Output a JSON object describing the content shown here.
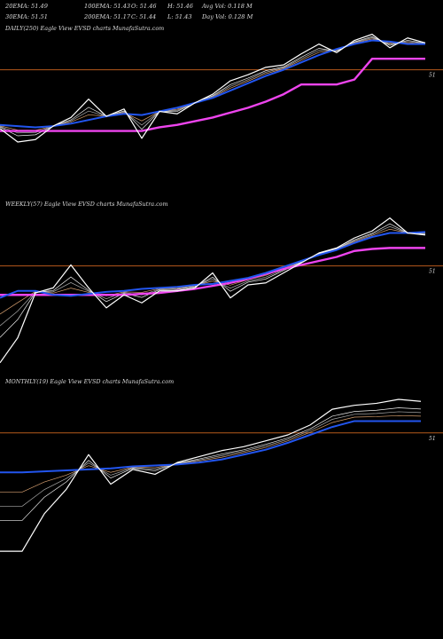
{
  "header": {
    "ema20": "20EMA: 51.49",
    "ema100": "100EMA: 51.43",
    "open": "O: 51.46",
    "high": "H: 51.46",
    "avg_vol": "Avg Vol: 0.118  M",
    "ema30": "30EMA: 51.51",
    "ema200": "200EMA: 51.17",
    "close": "C: 51.44",
    "low": "L: 51.43",
    "day_vol": "Day Vol: 0.128  M"
  },
  "colors": {
    "background": "#000000",
    "price": "#ffffff",
    "ema_short": "#2255ee",
    "ema_long": "#ee44ee",
    "ref_line": "#b65a1c",
    "ma_thin": [
      "#d8a070",
      "#aaaaaa",
      "#eeeeee"
    ]
  },
  "chart_data": [
    {
      "type": "line",
      "panel_label": "DAILY(250) Eagle   View  EVSD charts MunafaSutra.com",
      "reference_label": "51",
      "ylim": [
        50.56,
        51.72
      ],
      "reference": 51.44,
      "x": [
        0,
        20,
        40,
        60,
        80,
        100,
        120,
        140,
        160,
        180,
        200,
        220,
        240,
        260,
        280,
        300,
        320,
        340,
        360,
        380,
        400,
        420,
        440,
        460,
        480
      ],
      "series": [
        {
          "role": "price",
          "values": [
            50.96,
            50.85,
            50.87,
            50.98,
            51.05,
            51.2,
            51.06,
            51.12,
            50.88,
            51.1,
            51.08,
            51.17,
            51.24,
            51.35,
            51.4,
            51.46,
            51.48,
            51.57,
            51.65,
            51.58,
            51.68,
            51.73,
            51.62,
            51.7,
            51.66
          ]
        },
        {
          "role": "ema-blue",
          "values": [
            50.99,
            50.98,
            50.97,
            50.98,
            51.0,
            51.03,
            51.06,
            51.08,
            51.07,
            51.1,
            51.13,
            51.17,
            51.21,
            51.27,
            51.33,
            51.39,
            51.44,
            51.5,
            51.56,
            51.61,
            51.65,
            51.68,
            51.67,
            51.65,
            51.65
          ]
        },
        {
          "role": "ema-magenta",
          "values": [
            50.94,
            50.94,
            50.94,
            50.94,
            50.94,
            50.94,
            50.94,
            50.94,
            50.94,
            50.97,
            50.99,
            51.02,
            51.05,
            51.09,
            51.13,
            51.18,
            51.24,
            51.32,
            51.32,
            51.32,
            51.36,
            51.53,
            51.53,
            51.53,
            51.53
          ]
        }
      ]
    },
    {
      "type": "line",
      "panel_label": "WEEKLY(57) Eagle   View  EVSD charts MunafaSutra.com",
      "reference_label": "51",
      "ylim": [
        50.2,
        51.8
      ],
      "reference": 51.27,
      "x": [
        0,
        20,
        40,
        60,
        80,
        100,
        120,
        140,
        160,
        180,
        200,
        220,
        240,
        260,
        280,
        300,
        320,
        340,
        360,
        380,
        400,
        420,
        440,
        460,
        480
      ],
      "series": [
        {
          "role": "price",
          "values": [
            50.3,
            50.55,
            51.0,
            51.05,
            51.28,
            51.05,
            50.85,
            50.98,
            50.9,
            51.02,
            51.02,
            51.05,
            51.2,
            50.95,
            51.08,
            51.1,
            51.2,
            51.3,
            51.4,
            51.45,
            51.55,
            51.62,
            51.75,
            51.6,
            51.58
          ]
        },
        {
          "role": "ema-blue",
          "values": [
            50.95,
            51.02,
            51.02,
            50.98,
            50.97,
            50.99,
            51.01,
            51.02,
            51.04,
            51.05,
            51.06,
            51.08,
            51.09,
            51.12,
            51.15,
            51.2,
            51.26,
            51.32,
            51.38,
            51.43,
            51.5,
            51.56,
            51.6,
            51.6,
            51.61
          ]
        },
        {
          "role": "ema-magenta",
          "values": [
            50.98,
            50.98,
            50.98,
            50.98,
            50.98,
            50.98,
            50.98,
            50.98,
            50.99,
            51.0,
            51.02,
            51.04,
            51.07,
            51.1,
            51.14,
            51.19,
            51.24,
            51.28,
            51.32,
            51.36,
            51.42,
            51.44,
            51.45,
            51.45,
            51.45
          ]
        }
      ]
    },
    {
      "type": "line",
      "panel_label": "MONTHLY(19) Eagle   View  EVSD charts MunafaSutra.com",
      "reference_label": "51",
      "ylim": [
        49.95,
        51.75
      ],
      "reference": 51.32,
      "x": [
        0,
        25,
        50,
        75,
        100,
        125,
        150,
        175,
        200,
        225,
        250,
        275,
        300,
        325,
        350,
        375,
        400,
        425,
        450,
        475
      ],
      "series": [
        {
          "role": "price",
          "values": [
            50.12,
            50.12,
            50.5,
            50.75,
            51.1,
            50.8,
            50.95,
            50.9,
            51.02,
            51.08,
            51.14,
            51.18,
            51.24,
            51.3,
            51.4,
            51.56,
            51.6,
            51.62,
            51.66,
            51.64
          ]
        },
        {
          "role": "ema-blue",
          "values": [
            50.92,
            50.92,
            50.93,
            50.94,
            50.95,
            50.96,
            50.98,
            50.99,
            51.0,
            51.02,
            51.05,
            51.1,
            51.15,
            51.22,
            51.3,
            51.38,
            51.44,
            51.44,
            51.44,
            51.44
          ]
        }
      ]
    }
  ]
}
